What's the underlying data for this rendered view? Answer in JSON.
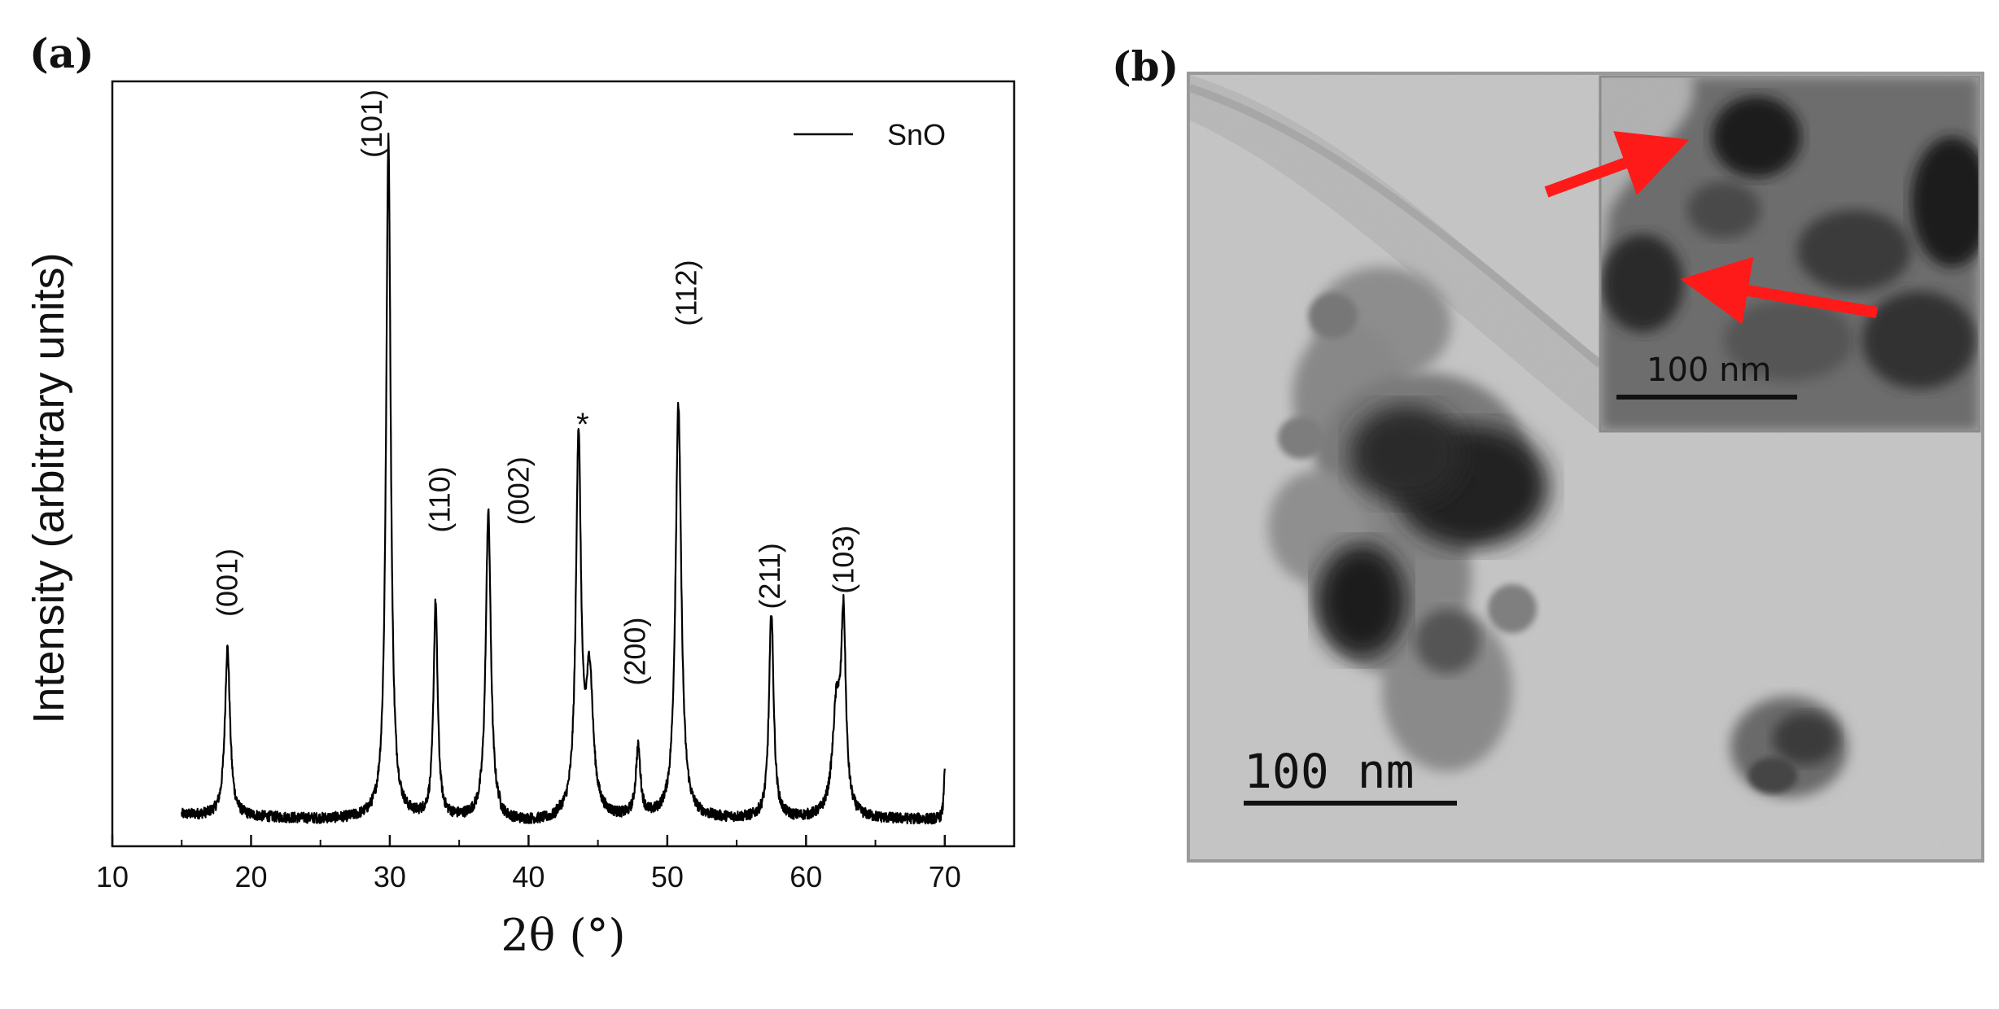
{
  "panel_a": {
    "label": "(a)"
  },
  "panel_b": {
    "label": "(b)"
  },
  "chart_data": {
    "type": "line",
    "title": "",
    "xlabel": "2θ (°)",
    "ylabel": "Intensity (arbitrary units)",
    "xlim": [
      10,
      75
    ],
    "ylim": [
      0,
      100
    ],
    "x_ticks": [
      10,
      20,
      30,
      40,
      50,
      60,
      70
    ],
    "x_tick_labels": [
      "10",
      "20",
      "30",
      "40",
      "50",
      "60",
      "70"
    ],
    "y_tick_labels_visible": false,
    "grid": false,
    "legend": {
      "entries": [
        "SnO"
      ],
      "placement": "top-right"
    },
    "series": [
      {
        "name": "SnO",
        "color": "#000000",
        "peaks": [
          {
            "x": 18.3,
            "y": 22,
            "width": 0.22
          },
          {
            "x": 29.9,
            "y": 89,
            "width": 0.2
          },
          {
            "x": 33.3,
            "y": 28,
            "width": 0.18
          },
          {
            "x": 37.1,
            "y": 40,
            "width": 0.22
          },
          {
            "x": 43.6,
            "y": 49,
            "width": 0.22
          },
          {
            "x": 44.4,
            "y": 18,
            "width": 0.3
          },
          {
            "x": 47.9,
            "y": 9,
            "width": 0.2
          },
          {
            "x": 50.8,
            "y": 54,
            "width": 0.25
          },
          {
            "x": 57.5,
            "y": 27,
            "width": 0.2
          },
          {
            "x": 62.2,
            "y": 14,
            "width": 0.35
          },
          {
            "x": 62.7,
            "y": 24,
            "width": 0.2
          },
          {
            "x": 70.0,
            "y": 7,
            "width": 0.08
          }
        ],
        "baseline_start": 15.0,
        "baseline_end": 70.0,
        "baseline_level": 3.5
      }
    ],
    "annotations": [
      {
        "text": "(001)",
        "x": 18.3,
        "y": 30
      },
      {
        "text": "(101)",
        "x": 28.7,
        "y": 90
      },
      {
        "text": "(110)",
        "x": 33.6,
        "y": 41
      },
      {
        "text": "(002)",
        "x": 39.3,
        "y": 42
      },
      {
        "text": "*",
        "x": 43.9,
        "y": 55
      },
      {
        "text": "(200)",
        "x": 47.7,
        "y": 21
      },
      {
        "text": "(112)",
        "x": 51.4,
        "y": 68
      },
      {
        "text": "(211)",
        "x": 57.4,
        "y": 31
      },
      {
        "text": "(103)",
        "x": 62.7,
        "y": 33
      }
    ]
  },
  "tem_image": {
    "scalebar_main": "100 nm",
    "scalebar_inset": "100 nm",
    "arrow_color": "#ff1a1a",
    "background_color": "#c9c9c9"
  }
}
